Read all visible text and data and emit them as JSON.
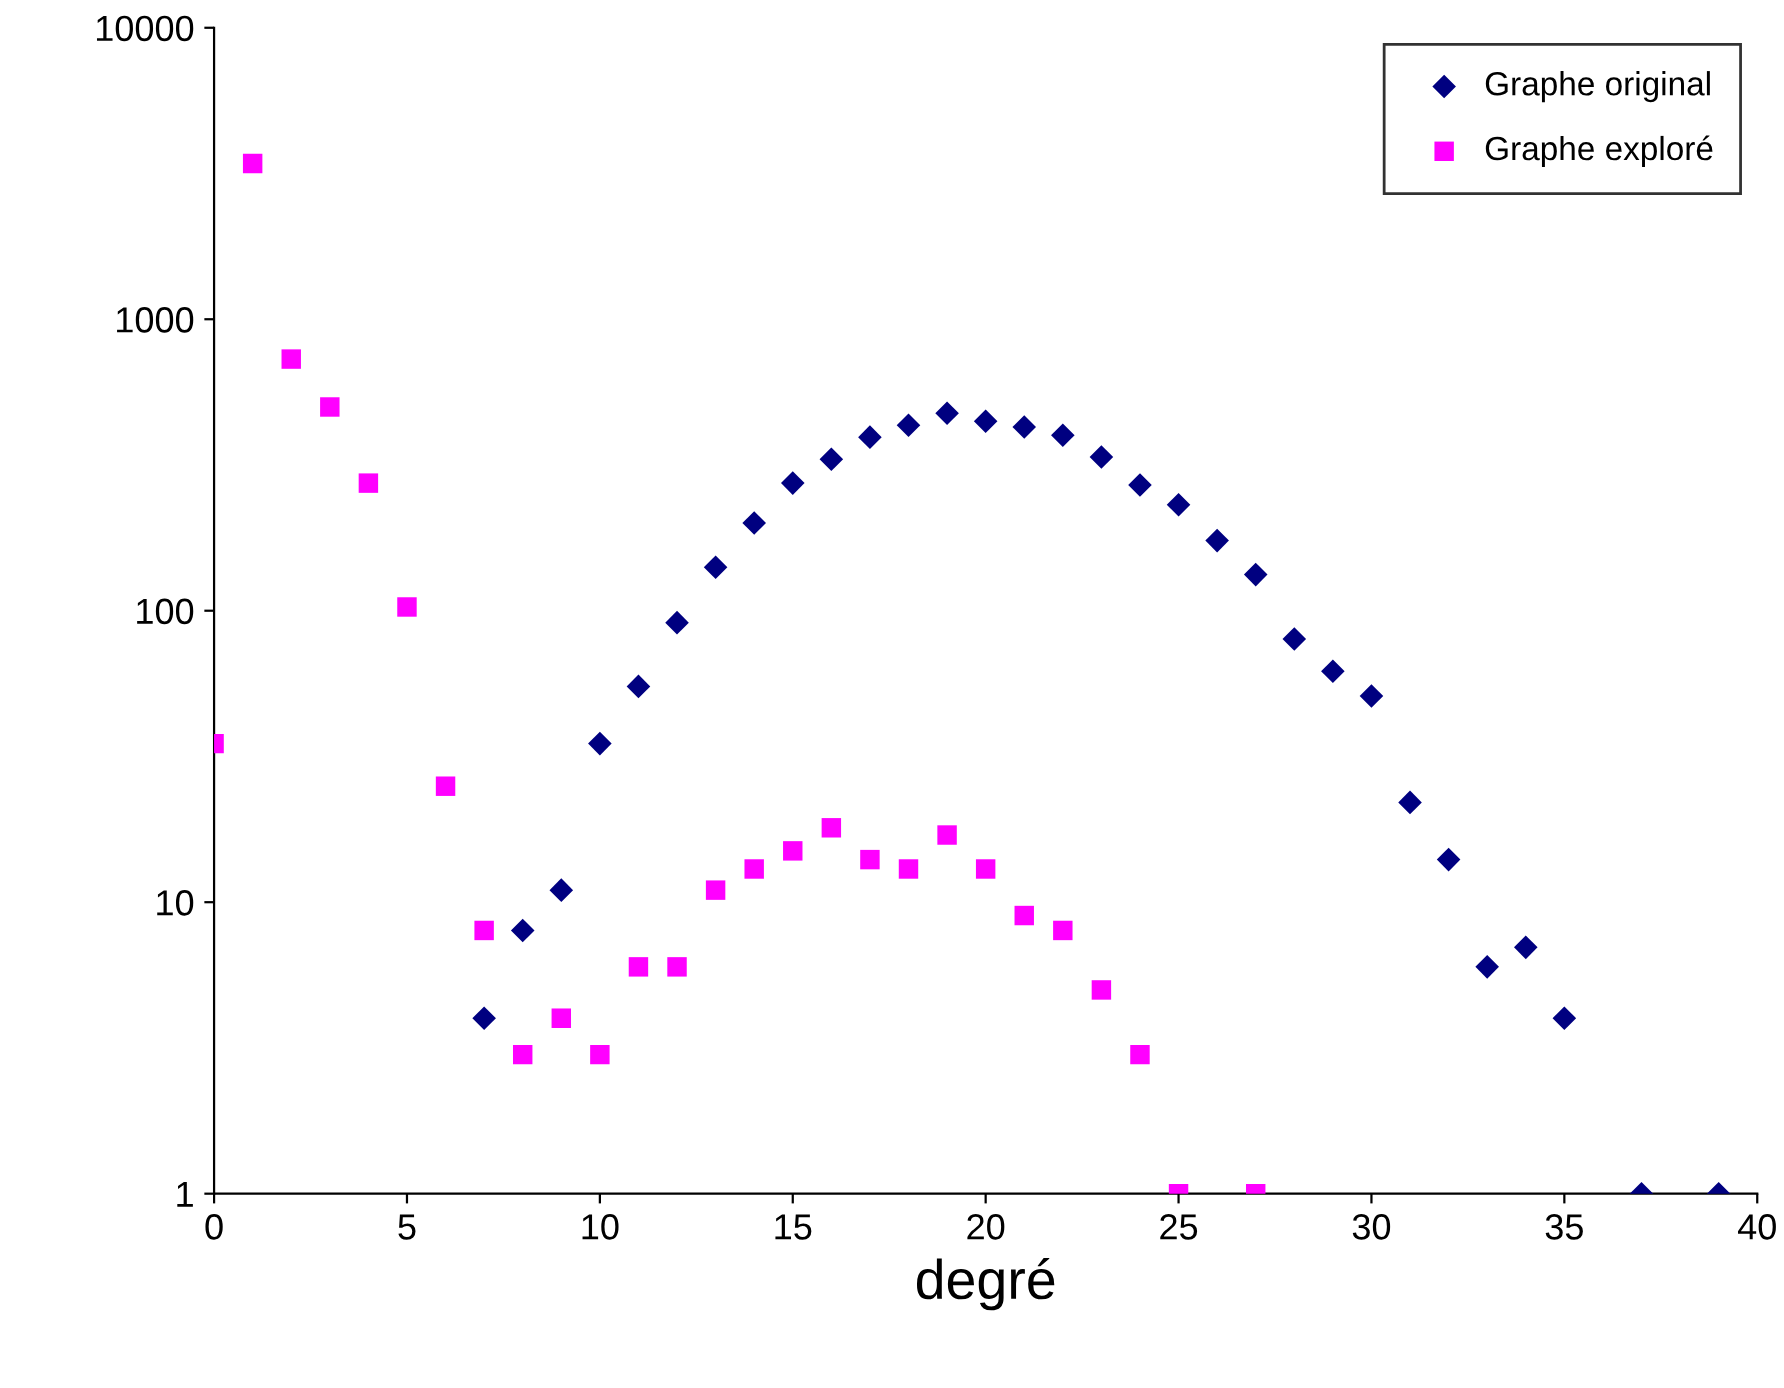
{
  "chart_data": {
    "type": "scatter",
    "xlabel": "degré",
    "log": "y",
    "xlim": [
      0,
      40
    ],
    "xticks": [
      0,
      5,
      10,
      15,
      20,
      25,
      30,
      35,
      40
    ],
    "ylim": [
      1,
      10000
    ],
    "yticks": [
      1,
      10,
      100,
      1000,
      10000
    ],
    "grid": false,
    "legend": "top right",
    "series": [
      {
        "name": "Graphe original",
        "color": "#000080",
        "marker": "diamond",
        "x": [
          7,
          8,
          9,
          10,
          11,
          12,
          13,
          14,
          15,
          16,
          17,
          18,
          19,
          20,
          21,
          22,
          23,
          24,
          25,
          26,
          27,
          28,
          29,
          30,
          31,
          32,
          33,
          34,
          35,
          37,
          39
        ],
        "values": [
          4,
          8,
          11,
          35,
          55,
          91,
          141,
          200,
          274,
          331,
          394,
          433,
          476,
          447,
          427,
          400,
          337,
          270,
          231,
          174,
          133,
          80,
          62,
          51,
          22,
          14,
          6,
          7,
          4,
          1,
          1
        ]
      },
      {
        "name": "Graphe exploré",
        "color": "#ff00ff",
        "marker": "square",
        "x": [
          0,
          1,
          2,
          3,
          4,
          5,
          6,
          7,
          8,
          9,
          10,
          11,
          12,
          13,
          14,
          15,
          16,
          17,
          18,
          19,
          20,
          21,
          22,
          23,
          24,
          25,
          27
        ],
        "values": [
          35,
          3420,
          730,
          500,
          274,
          103,
          25,
          8,
          3,
          4,
          3,
          6,
          6,
          11,
          13,
          15,
          18,
          14,
          13,
          17,
          13,
          9,
          8,
          5,
          3,
          1,
          1
        ]
      }
    ]
  }
}
